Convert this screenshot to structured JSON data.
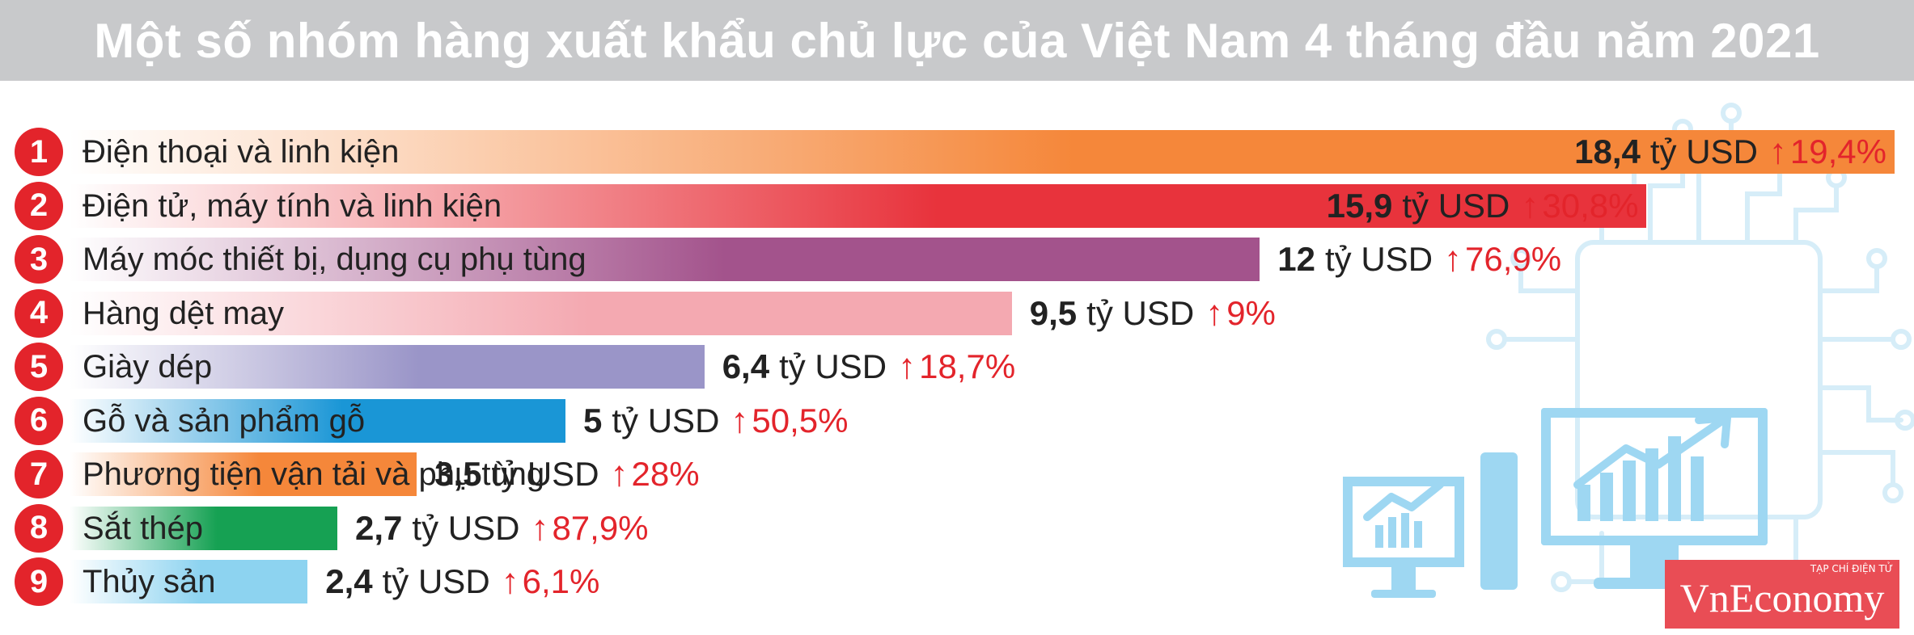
{
  "title": "Một số nhóm hàng xuất khẩu chủ lực của Việt Nam 4 tháng đầu năm 2021",
  "logo": {
    "small_text": "TẠP CHÍ ĐIỆN TỬ",
    "main_text": "VnEconomy"
  },
  "chart_data": {
    "type": "bar",
    "orientation": "horizontal",
    "title": "Một số nhóm hàng xuất khẩu chủ lực của Việt Nam 4 tháng đầu năm 2021",
    "xlim": [
      0,
      18.4
    ],
    "grid": false,
    "categories": [
      "Điện thoại và linh kiện",
      "Điện tử, máy tính và linh kiện",
      "Máy móc thiết bị, dụng cụ phụ tùng",
      "Hàng dệt may",
      "Giày dép",
      "Gỗ và sản phẩm gỗ",
      "Phương tiện vận tải và phụ tùng",
      "Sắt thép",
      "Thủy sản"
    ],
    "ranks": [
      "1",
      "2",
      "3",
      "4",
      "5",
      "6",
      "7",
      "8",
      "9"
    ],
    "values": [
      18.4,
      15.9,
      12,
      9.5,
      6.4,
      5,
      3.5,
      2.7,
      2.4
    ],
    "value_labels": [
      "18,4",
      "15,9",
      "12",
      "9,5",
      "6,4",
      "5",
      "3,5",
      "2,7",
      "2,4"
    ],
    "unit": "tỷ USD",
    "growth_labels": [
      "19,4%",
      "30,8%",
      "76,9%",
      "9%",
      "18,7%",
      "50,5%",
      "28%",
      "87,9%",
      "6,1%"
    ],
    "colors": [
      "#f5873a",
      "#e8333c",
      "#a3538c",
      "#f4a9b1",
      "#9a95c8",
      "#1a96d6",
      "#f5873a",
      "#16a153",
      "#8dd3f0"
    ]
  }
}
